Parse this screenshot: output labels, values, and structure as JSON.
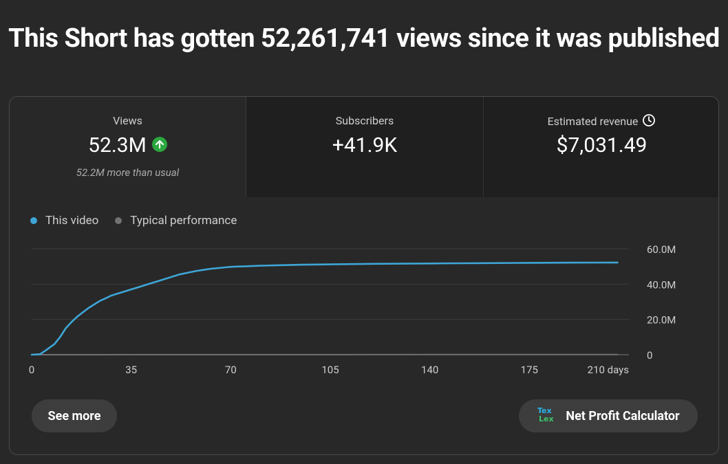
{
  "headline": "This Short has gotten 52,261,741 views since it was published",
  "metrics": [
    {
      "label": "Views",
      "value": "52.3M",
      "sub": "52.2M more than usual",
      "icon": "arrow-up-icon"
    },
    {
      "label": "Subscribers",
      "value": "+41.9K"
    },
    {
      "label": "Estimated revenue",
      "value": "$7,031.49",
      "icon": "clock-icon"
    }
  ],
  "legend": [
    {
      "label": "This video",
      "color": "#3ea6d7"
    },
    {
      "label": "Typical performance",
      "color": "#717171"
    }
  ],
  "buttons": {
    "see_more": "See more",
    "net_profit": "Net Profit Calculator"
  },
  "chart_data": {
    "type": "line",
    "title": "",
    "xlabel": "",
    "ylabel": "",
    "xlim": [
      0,
      210
    ],
    "ylim": [
      0,
      60000000
    ],
    "x_ticks": [
      0,
      35,
      70,
      105,
      140,
      175,
      210
    ],
    "x_tick_labels": [
      "0",
      "35",
      "70",
      "105",
      "140",
      "175",
      "210 days"
    ],
    "y_ticks": [
      0,
      20000000,
      40000000,
      60000000
    ],
    "y_tick_labels": [
      "0",
      "20.0M",
      "40.0M",
      "60.0M"
    ],
    "series": [
      {
        "name": "This video",
        "color": "#3ea6d7",
        "x": [
          0,
          3,
          5,
          8,
          10,
          12,
          14,
          16,
          18,
          20,
          22,
          24,
          26,
          28,
          30,
          32,
          35,
          38,
          40,
          43,
          45,
          48,
          50,
          52,
          55,
          58,
          60,
          63,
          65,
          68,
          70,
          73,
          75,
          78,
          80,
          85,
          90,
          95,
          100,
          105,
          110,
          115,
          120,
          130,
          140,
          150,
          160,
          170,
          180,
          190,
          200,
          206
        ],
        "y": [
          0,
          300000,
          2500000,
          6000000,
          10000000,
          15000000,
          18500000,
          21500000,
          24000000,
          26500000,
          28500000,
          30500000,
          32000000,
          33500000,
          34500000,
          35500000,
          37000000,
          38500000,
          39500000,
          41000000,
          42000000,
          43500000,
          44500000,
          45500000,
          46500000,
          47500000,
          48000000,
          48700000,
          49000000,
          49500000,
          49800000,
          50000000,
          50100000,
          50300000,
          50400000,
          50600000,
          50800000,
          51000000,
          51100000,
          51200000,
          51300000,
          51400000,
          51500000,
          51600000,
          51700000,
          51800000,
          51900000,
          52000000,
          52100000,
          52150000,
          52200000,
          52261741
        ]
      },
      {
        "name": "Typical performance",
        "color": "#717171",
        "x": [
          0,
          206
        ],
        "y": [
          0,
          100000
        ]
      }
    ]
  }
}
